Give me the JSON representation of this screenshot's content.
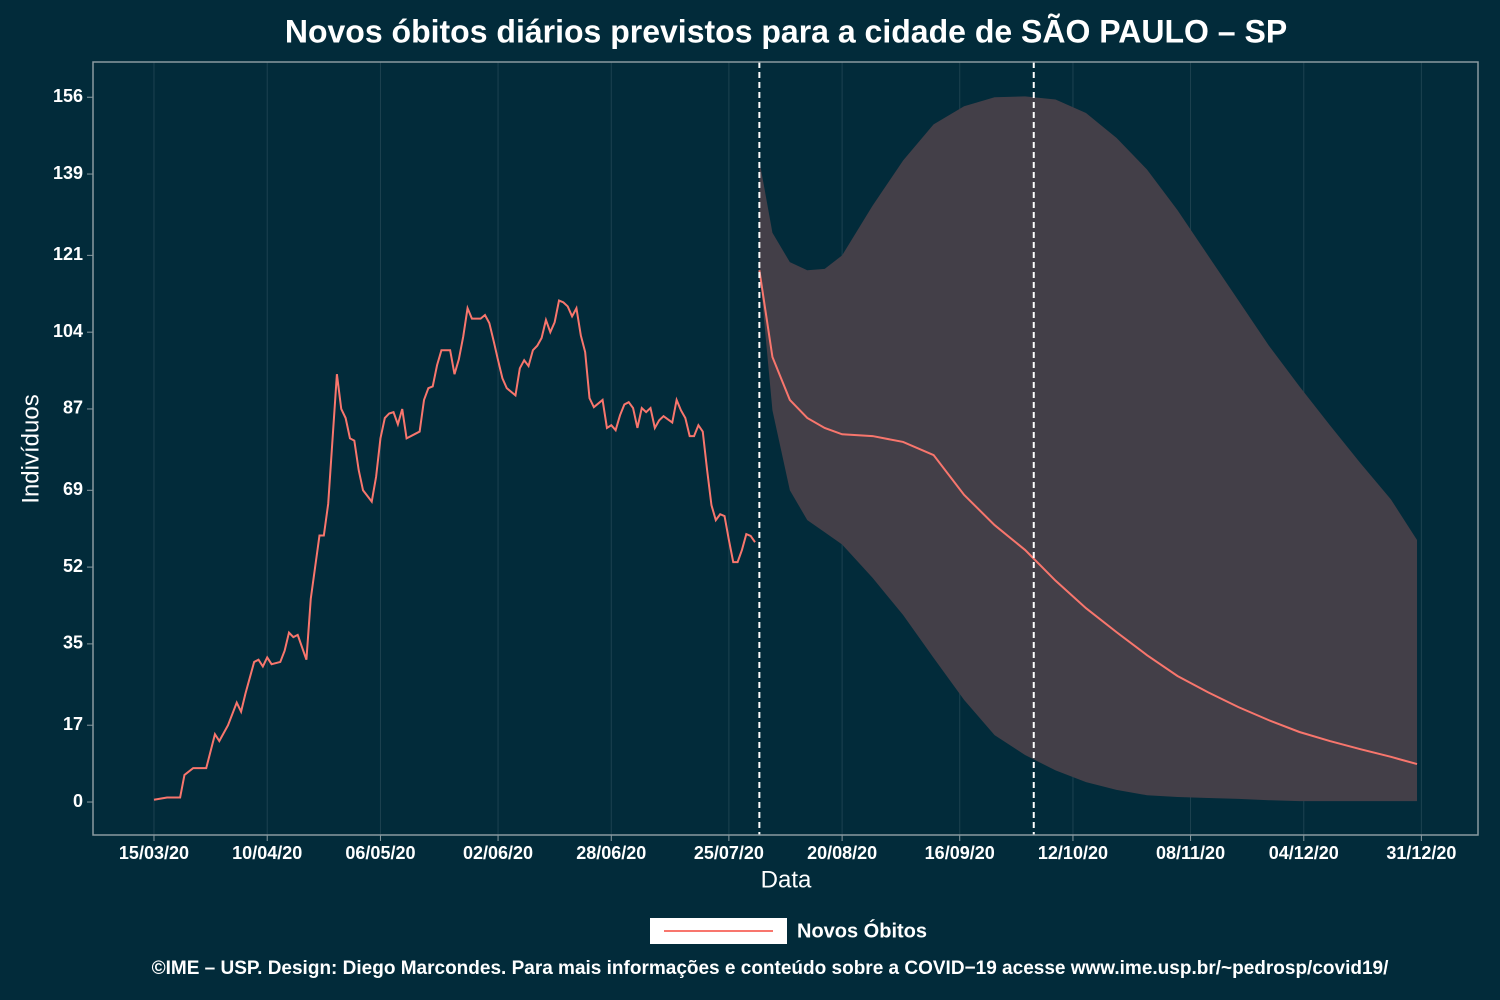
{
  "chart_data": {
    "type": "line",
    "title": "Novos óbitos diários previstos para a cidade de SÃO PAULO – SP",
    "xlabel": "Data",
    "ylabel": "Indivíduos",
    "caption": "©IME – USP. Design: Diego Marcondes. Para mais informações e conteúdo sobre a COVID−19 acesse www.ime.usp.br/~pedrosp/covid19/",
    "xlim": [
      "01/03/20",
      "13/01/21"
    ],
    "ylim": [
      -7.3,
      163.8
    ],
    "xticks": [
      "15/03/20",
      "10/04/20",
      "06/05/20",
      "02/06/20",
      "28/06/20",
      "25/07/20",
      "20/08/20",
      "16/09/20",
      "12/10/20",
      "08/11/20",
      "04/12/20",
      "31/12/20"
    ],
    "yticks": [
      0,
      17,
      35,
      52,
      69,
      87,
      104,
      121,
      139,
      156
    ],
    "grid": true,
    "legend": "bottom",
    "vlines": [
      "01/08/20",
      "03/10/20"
    ],
    "x": [
      "15/03/20",
      "18/03/20",
      "21/03/20",
      "22/03/20",
      "24/03/20",
      "27/03/20",
      "29/03/20",
      "30/03/20",
      "01/04/20",
      "03/04/20",
      "04/04/20",
      "05/04/20",
      "07/04/20",
      "08/04/20",
      "09/04/20",
      "10/04/20",
      "11/04/20",
      "13/04/20",
      "14/04/20",
      "15/04/20",
      "16/04/20",
      "17/04/20",
      "19/04/20",
      "20/04/20",
      "21/04/20",
      "22/04/20",
      "23/04/20",
      "24/04/20",
      "26/04/20",
      "27/04/20",
      "28/04/20",
      "29/04/20",
      "30/04/20",
      "01/05/20",
      "02/05/20",
      "04/05/20",
      "05/05/20",
      "06/05/20",
      "07/05/20",
      "08/05/20",
      "09/05/20",
      "10/05/20",
      "11/05/20",
      "12/05/20",
      "14/05/20",
      "15/05/20",
      "16/05/20",
      "17/05/20",
      "18/05/20",
      "19/05/20",
      "20/05/20",
      "22/05/20",
      "23/05/20",
      "24/05/20",
      "25/05/20",
      "26/05/20",
      "27/05/20",
      "29/05/20",
      "30/05/20",
      "31/05/20",
      "01/06/20",
      "02/06/20",
      "03/06/20",
      "04/06/20",
      "06/06/20",
      "07/06/20",
      "08/06/20",
      "09/06/20",
      "10/06/20",
      "11/06/20",
      "12/06/20",
      "13/06/20",
      "14/06/20",
      "15/06/20",
      "16/06/20",
      "17/06/20",
      "18/06/20",
      "19/06/20",
      "20/06/20",
      "21/06/20",
      "22/06/20",
      "23/06/20",
      "24/06/20",
      "26/06/20",
      "27/06/20",
      "28/06/20",
      "29/06/20",
      "30/06/20",
      "01/07/20",
      "02/07/20",
      "03/07/20",
      "04/07/20",
      "05/07/20",
      "06/07/20",
      "07/07/20",
      "08/07/20",
      "09/07/20",
      "10/07/20",
      "12/07/20",
      "13/07/20",
      "14/07/20",
      "15/07/20",
      "16/07/20",
      "17/07/20",
      "18/07/20",
      "19/07/20",
      "20/07/20",
      "21/07/20",
      "22/07/20",
      "23/07/20",
      "24/07/20",
      "25/07/20",
      "26/07/20",
      "27/07/20",
      "28/07/20",
      "29/07/20",
      "30/07/20",
      "31/07/20"
    ],
    "series": [
      {
        "name": "Novos Óbitos",
        "color": "#f8766d",
        "values": [
          0.5,
          1,
          1,
          6,
          7.5,
          7.5,
          15,
          13.5,
          17,
          22,
          20,
          24,
          31,
          31.5,
          30,
          32,
          30.5,
          31,
          33.5,
          37.5,
          36.5,
          37,
          31.5,
          45,
          52,
          59,
          59,
          66,
          94.7,
          87,
          85,
          80.5,
          80,
          73.5,
          69,
          66.5,
          72,
          80.5,
          85,
          86,
          86.3,
          83.6,
          87,
          80.5,
          81.5,
          82,
          89,
          91.6,
          92,
          96.7,
          100,
          100,
          94.7,
          98,
          103,
          109.3,
          107,
          107,
          107.8,
          106,
          102,
          97.8,
          93.8,
          91.6,
          90,
          96,
          97.8,
          96.5,
          100,
          101,
          102.7,
          106.7,
          104,
          106.2,
          111,
          110.6,
          109.7,
          107.5,
          109.3,
          103.3,
          99.6,
          89.4,
          87.4,
          89,
          82.8,
          83.4,
          82.3,
          85.6,
          88,
          88.5,
          87.2,
          82.8,
          87.2,
          86.3,
          87.2,
          82.8,
          84.5,
          85.4,
          84,
          89,
          86.7,
          85,
          81,
          81,
          83.4,
          82,
          73.5,
          65.7,
          62.4,
          63.7,
          63.3,
          58,
          53.1,
          53.1,
          55.8,
          59.3,
          58.9,
          57.5
        ]
      }
    ],
    "forecast": {
      "band_color": "#433f48",
      "x": [
        "01/08/20",
        "04/08/20",
        "08/08/20",
        "12/08/20",
        "16/08/20",
        "20/08/20",
        "27/08/20",
        "03/09/20",
        "10/09/20",
        "17/09/20",
        "24/09/20",
        "01/10/20",
        "08/10/20",
        "15/10/20",
        "22/10/20",
        "29/10/20",
        "05/11/20",
        "12/11/20",
        "19/11/20",
        "26/11/20",
        "03/12/20",
        "10/12/20",
        "17/12/20",
        "24/12/20",
        "30/12/20"
      ],
      "mean": [
        117.7,
        98.5,
        89,
        85,
        82.8,
        81.4,
        81,
        79.7,
        76.8,
        68,
        61.3,
        55.8,
        49,
        42.9,
        37.6,
        32.5,
        27.9,
        24.3,
        21,
        18.1,
        15.5,
        13.5,
        11.7,
        10,
        8.4
      ],
      "lower": [
        118,
        86.7,
        69,
        62.4,
        59.7,
        57,
        49.6,
        41.4,
        31.9,
        22.6,
        14.8,
        10.4,
        7,
        4.4,
        2.7,
        1.5,
        1.1,
        0.9,
        0.7,
        0.4,
        0.2,
        0.2,
        0.2,
        0.2,
        0.2
      ],
      "upper": [
        142,
        126,
        119.5,
        117.7,
        118,
        121,
        132,
        142,
        150,
        154,
        156,
        156.2,
        155.5,
        152.5,
        147,
        140,
        131,
        121,
        111,
        101,
        92,
        83.4,
        75,
        67,
        58
      ]
    }
  }
}
